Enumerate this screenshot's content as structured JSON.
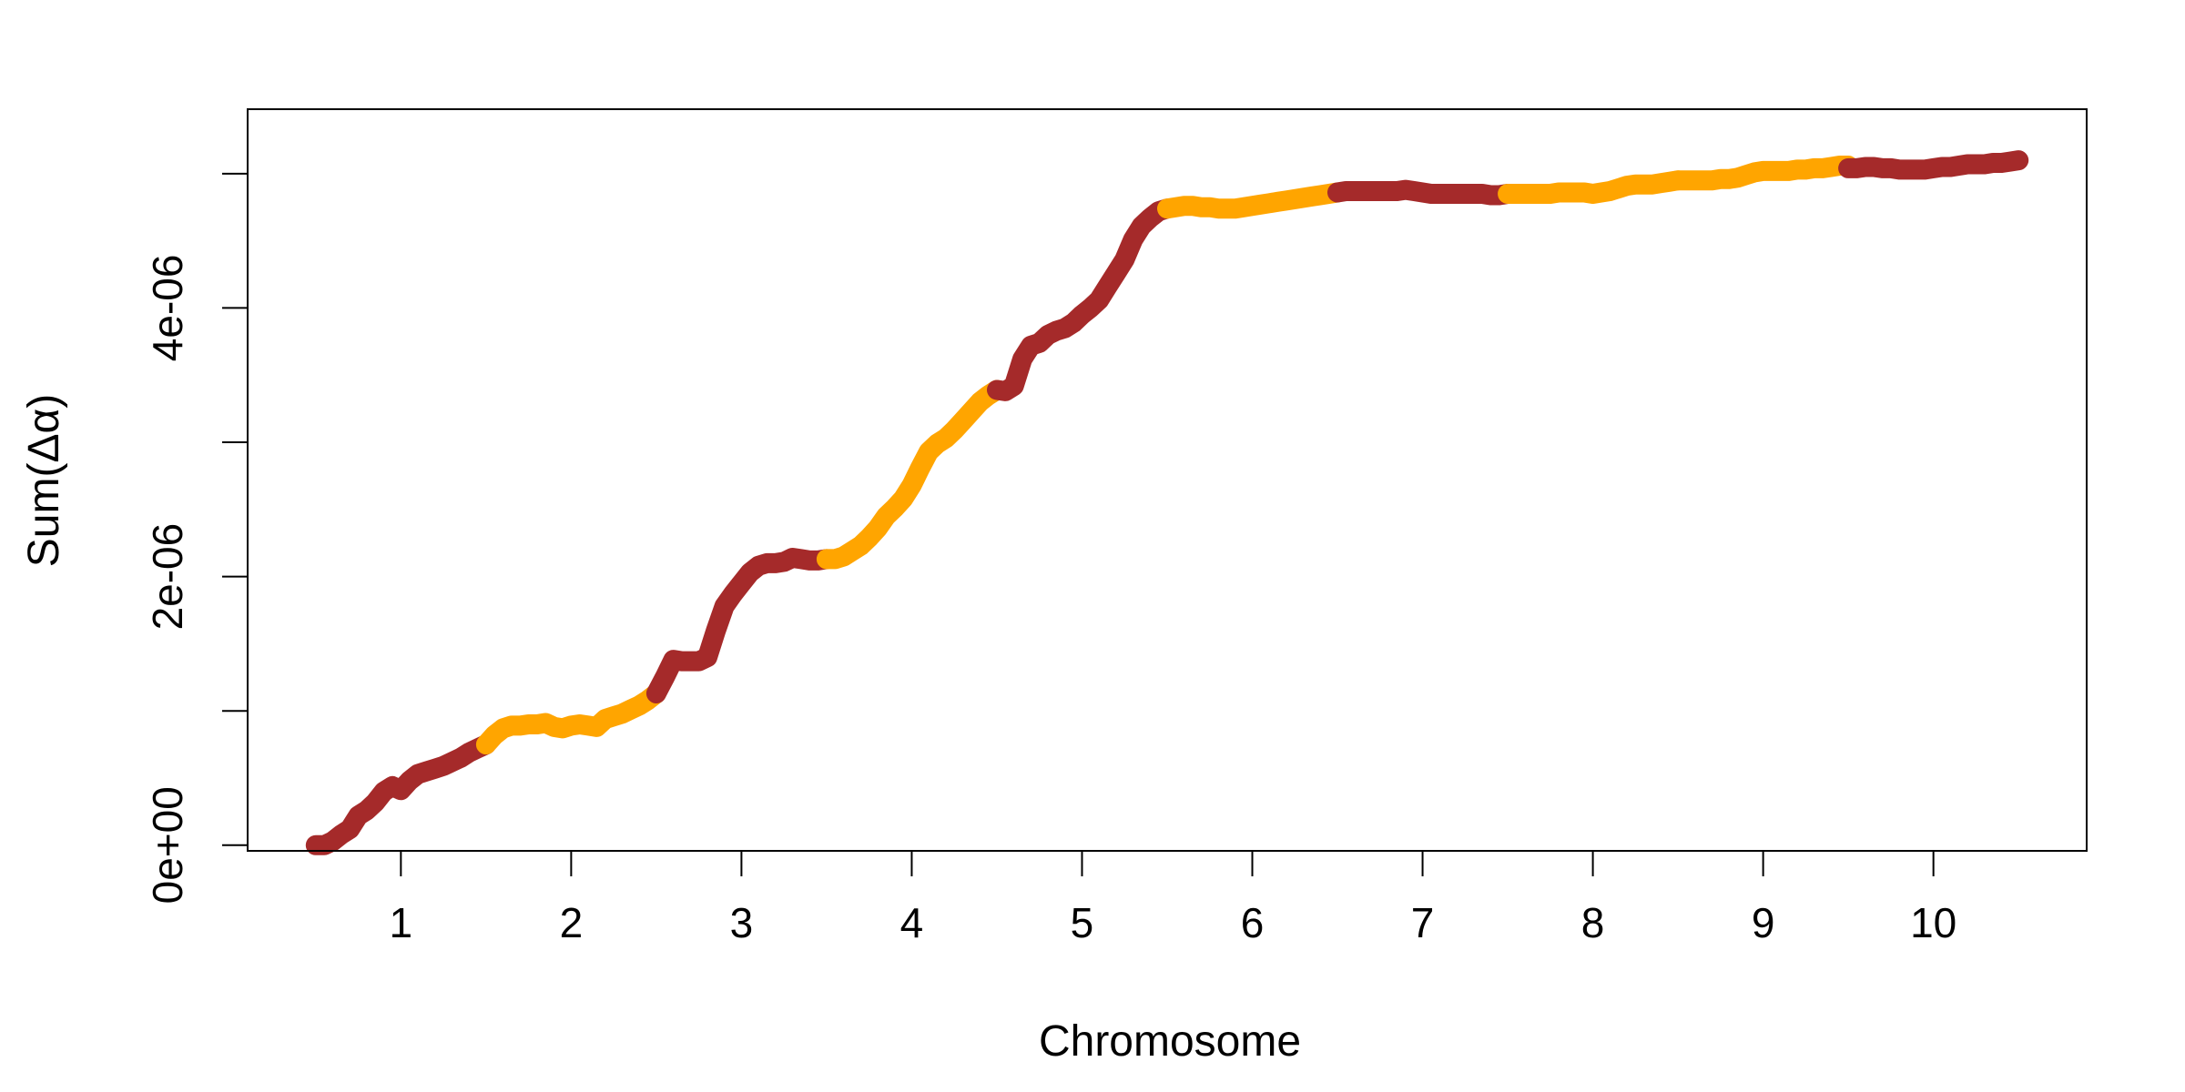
{
  "chart_data": {
    "type": "line",
    "title": "",
    "xlabel": "Chromosome",
    "ylabel": "Sum(Δα)",
    "xlim": [
      0.1,
      10.9
    ],
    "ylim": [
      -4.2e-08,
      5.48e-06
    ],
    "x_ticks": [
      {
        "value": 1,
        "label": "1"
      },
      {
        "value": 2,
        "label": "2"
      },
      {
        "value": 3,
        "label": "3"
      },
      {
        "value": 4,
        "label": "4"
      },
      {
        "value": 5,
        "label": "5"
      },
      {
        "value": 6,
        "label": "6"
      },
      {
        "value": 7,
        "label": "7"
      },
      {
        "value": 8,
        "label": "8"
      },
      {
        "value": 9,
        "label": "9"
      },
      {
        "value": 10,
        "label": "10"
      }
    ],
    "y_ticks": [
      {
        "value": 0,
        "label": "0e+00"
      },
      {
        "value": 1e-06,
        "label": ""
      },
      {
        "value": 2e-06,
        "label": "2e-06"
      },
      {
        "value": 3e-06,
        "label": ""
      },
      {
        "value": 4e-06,
        "label": "4e-06"
      },
      {
        "value": 5e-06,
        "label": ""
      }
    ],
    "grid": false,
    "legend": "none",
    "alternating_colors": [
      "#A52A2A",
      "#FFA500"
    ],
    "series": [
      {
        "chromosome": 1,
        "color": "#A52A2A",
        "x": [
          0.5,
          0.55,
          0.6,
          0.65,
          0.7,
          0.75,
          0.8,
          0.85,
          0.9,
          0.95,
          1.0,
          1.05,
          1.1,
          1.15,
          1.2,
          1.25,
          1.3,
          1.35,
          1.4,
          1.45,
          1.5
        ],
        "y": [
          0.0,
          0.0,
          3e-08,
          8e-08,
          1.2e-07,
          2.2e-07,
          2.6e-07,
          3.2e-07,
          4e-07,
          4.4e-07,
          4.1e-07,
          4.8e-07,
          5.3e-07,
          5.5e-07,
          5.7e-07,
          5.9e-07,
          6.2e-07,
          6.5e-07,
          6.9e-07,
          7.2e-07,
          7.5e-07
        ]
      },
      {
        "chromosome": 2,
        "color": "#FFA500",
        "x": [
          1.5,
          1.55,
          1.6,
          1.65,
          1.7,
          1.75,
          1.8,
          1.85,
          1.9,
          1.95,
          2.0,
          2.05,
          2.1,
          2.15,
          2.2,
          2.25,
          2.3,
          2.35,
          2.4,
          2.45,
          2.5
        ],
        "y": [
          7.5e-07,
          8.2e-07,
          8.7e-07,
          8.9e-07,
          8.9e-07,
          9e-07,
          9e-07,
          9.1e-07,
          8.8e-07,
          8.7e-07,
          8.9e-07,
          9e-07,
          8.9e-07,
          8.8e-07,
          9.4e-07,
          9.6e-07,
          9.8e-07,
          1.01e-06,
          1.04e-06,
          1.08e-06,
          1.13e-06
        ]
      },
      {
        "chromosome": 3,
        "color": "#A52A2A",
        "x": [
          2.5,
          2.55,
          2.6,
          2.65,
          2.7,
          2.75,
          2.8,
          2.85,
          2.9,
          2.95,
          3.0,
          3.05,
          3.1,
          3.15,
          3.2,
          3.25,
          3.3,
          3.35,
          3.4,
          3.45,
          3.5
        ],
        "y": [
          1.13e-06,
          1.25e-06,
          1.38e-06,
          1.37e-06,
          1.37e-06,
          1.37e-06,
          1.4e-06,
          1.6e-06,
          1.78e-06,
          1.87e-06,
          1.95e-06,
          2.03e-06,
          2.08e-06,
          2.1e-06,
          2.1e-06,
          2.11e-06,
          2.14e-06,
          2.13e-06,
          2.12e-06,
          2.12e-06,
          2.13e-06
        ]
      },
      {
        "chromosome": 4,
        "color": "#FFA500",
        "x": [
          3.5,
          3.55,
          3.6,
          3.65,
          3.7,
          3.75,
          3.8,
          3.85,
          3.9,
          3.95,
          4.0,
          4.05,
          4.1,
          4.15,
          4.2,
          4.25,
          4.3,
          4.35,
          4.4,
          4.45,
          4.5
        ],
        "y": [
          2.13e-06,
          2.13e-06,
          2.15e-06,
          2.19e-06,
          2.23e-06,
          2.29e-06,
          2.36e-06,
          2.45e-06,
          2.51e-06,
          2.58e-06,
          2.68e-06,
          2.81e-06,
          2.93e-06,
          2.99e-06,
          3.03e-06,
          3.09e-06,
          3.16e-06,
          3.23e-06,
          3.3e-06,
          3.35e-06,
          3.39e-06
        ]
      },
      {
        "chromosome": 5,
        "color": "#A52A2A",
        "x": [
          4.5,
          4.55,
          4.6,
          4.65,
          4.7,
          4.75,
          4.8,
          4.85,
          4.9,
          4.95,
          5.0,
          5.05,
          5.1,
          5.15,
          5.2,
          5.25,
          5.3,
          5.35,
          5.4,
          5.45,
          5.5
        ],
        "y": [
          3.39e-06,
          3.38e-06,
          3.42e-06,
          3.62e-06,
          3.72e-06,
          3.74e-06,
          3.8e-06,
          3.83e-06,
          3.85e-06,
          3.89e-06,
          3.95e-06,
          4e-06,
          4.06e-06,
          4.16e-06,
          4.26e-06,
          4.36e-06,
          4.51e-06,
          4.61e-06,
          4.67e-06,
          4.72e-06,
          4.74e-06
        ]
      },
      {
        "chromosome": 6,
        "color": "#FFA500",
        "x": [
          5.5,
          5.55,
          5.6,
          5.65,
          5.7,
          5.75,
          5.8,
          5.85,
          5.9,
          5.95,
          6.0,
          6.05,
          6.1,
          6.15,
          6.2,
          6.25,
          6.3,
          6.35,
          6.4,
          6.45,
          6.5
        ],
        "y": [
          4.74e-06,
          4.75e-06,
          4.76e-06,
          4.76e-06,
          4.75e-06,
          4.75e-06,
          4.74e-06,
          4.74e-06,
          4.74e-06,
          4.75e-06,
          4.76e-06,
          4.77e-06,
          4.78e-06,
          4.79e-06,
          4.8e-06,
          4.81e-06,
          4.82e-06,
          4.83e-06,
          4.84e-06,
          4.85e-06,
          4.86e-06
        ]
      },
      {
        "chromosome": 7,
        "color": "#A52A2A",
        "x": [
          6.5,
          6.55,
          6.6,
          6.65,
          6.7,
          6.75,
          6.8,
          6.85,
          6.9,
          6.95,
          7.0,
          7.05,
          7.1,
          7.15,
          7.2,
          7.25,
          7.3,
          7.35,
          7.4,
          7.45,
          7.5
        ],
        "y": [
          4.86e-06,
          4.87e-06,
          4.87e-06,
          4.87e-06,
          4.87e-06,
          4.87e-06,
          4.87e-06,
          4.87e-06,
          4.88e-06,
          4.87e-06,
          4.86e-06,
          4.85e-06,
          4.85e-06,
          4.85e-06,
          4.85e-06,
          4.85e-06,
          4.85e-06,
          4.85e-06,
          4.84e-06,
          4.84e-06,
          4.85e-06
        ]
      },
      {
        "chromosome": 8,
        "color": "#FFA500",
        "x": [
          7.5,
          7.55,
          7.6,
          7.65,
          7.7,
          7.75,
          7.8,
          7.85,
          7.9,
          7.95,
          8.0,
          8.05,
          8.1,
          8.15,
          8.2,
          8.25,
          8.3,
          8.35,
          8.4,
          8.45,
          8.5
        ],
        "y": [
          4.85e-06,
          4.85e-06,
          4.85e-06,
          4.85e-06,
          4.85e-06,
          4.85e-06,
          4.86e-06,
          4.86e-06,
          4.86e-06,
          4.86e-06,
          4.85e-06,
          4.86e-06,
          4.87e-06,
          4.89e-06,
          4.91e-06,
          4.92e-06,
          4.92e-06,
          4.92e-06,
          4.93e-06,
          4.94e-06,
          4.95e-06
        ]
      },
      {
        "chromosome": 9,
        "color": "#FFA500",
        "x": [
          8.5,
          8.55,
          8.6,
          8.65,
          8.7,
          8.75,
          8.8,
          8.85,
          8.9,
          8.95,
          9.0,
          9.05,
          9.1,
          9.15,
          9.2,
          9.25,
          9.3,
          9.35,
          9.4,
          9.45,
          9.5
        ],
        "y": [
          4.95e-06,
          4.95e-06,
          4.95e-06,
          4.95e-06,
          4.95e-06,
          4.96e-06,
          4.96e-06,
          4.97e-06,
          4.99e-06,
          5.01e-06,
          5.02e-06,
          5.02e-06,
          5.02e-06,
          5.02e-06,
          5.03e-06,
          5.03e-06,
          5.04e-06,
          5.04e-06,
          5.05e-06,
          5.06e-06,
          5.06e-06
        ]
      },
      {
        "chromosome": 10,
        "color": "#A52A2A",
        "x": [
          9.5,
          9.55,
          9.6,
          9.65,
          9.7,
          9.75,
          9.8,
          9.85,
          9.9,
          9.95,
          10.0,
          10.05,
          10.1,
          10.15,
          10.2,
          10.25,
          10.3,
          10.35,
          10.4,
          10.45,
          10.5
        ],
        "y": [
          5.04e-06,
          5.04e-06,
          5.05e-06,
          5.05e-06,
          5.04e-06,
          5.04e-06,
          5.03e-06,
          5.03e-06,
          5.03e-06,
          5.03e-06,
          5.04e-06,
          5.05e-06,
          5.05e-06,
          5.06e-06,
          5.07e-06,
          5.07e-06,
          5.07e-06,
          5.08e-06,
          5.08e-06,
          5.09e-06,
          5.1e-06
        ]
      }
    ]
  }
}
